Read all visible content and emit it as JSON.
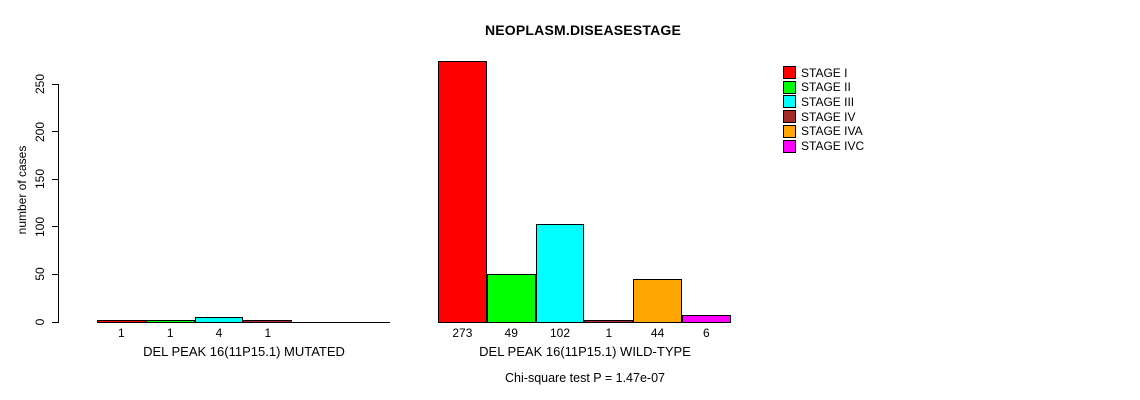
{
  "title": "NEOPLASM.DISEASESTAGE",
  "footnote": "Chi-square test P = 1.47e-07",
  "chart_data": {
    "type": "bar",
    "title": "NEOPLASM.DISEASESTAGE",
    "xlabel": "",
    "ylabel": "number of cases",
    "ylim": [
      0,
      250
    ],
    "yticks": [
      0,
      50,
      100,
      150,
      200,
      250
    ],
    "grid": false,
    "legend_position": "right",
    "legend": [
      {
        "label": "STAGE I",
        "color": "#FF0000"
      },
      {
        "label": "STAGE II",
        "color": "#00FF00"
      },
      {
        "label": "STAGE III",
        "color": "#00FFFF"
      },
      {
        "label": "STAGE IV",
        "color": "#A52A2A"
      },
      {
        "label": "STAGE IVA",
        "color": "#FFA500"
      },
      {
        "label": "STAGE IVC",
        "color": "#FF00FF"
      }
    ],
    "groups": [
      {
        "label": "DEL PEAK 16(11P15.1) MUTATED",
        "series_order": [
          "STAGE I",
          "STAGE II",
          "STAGE III",
          "STAGE IV",
          "STAGE IVA",
          "STAGE IVC"
        ],
        "values": [
          1,
          1,
          4,
          1,
          0,
          0
        ],
        "value_labels": [
          "1",
          "1",
          "4",
          "1",
          "",
          ""
        ]
      },
      {
        "label": "DEL PEAK 16(11P15.1) WILD-TYPE",
        "series_order": [
          "STAGE I",
          "STAGE II",
          "STAGE III",
          "STAGE IV",
          "STAGE IVA",
          "STAGE IVC"
        ],
        "values": [
          273,
          49,
          102,
          1,
          44,
          6
        ],
        "value_labels": [
          "273",
          "49",
          "102",
          "1",
          "44",
          "6"
        ]
      }
    ],
    "annotation": "Chi-square test P = 1.47e-07"
  }
}
